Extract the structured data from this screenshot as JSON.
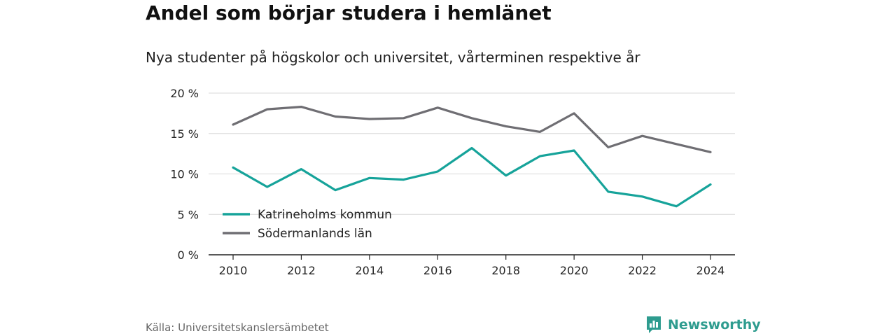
{
  "header": {
    "title": "Andel som börjar studera i hemlänet",
    "subtitle": "Nya studenter på högskolor och universitet, vårterminen respektive år"
  },
  "footer": {
    "source": "Källa: Universitetskanslersämbetet",
    "brand": "Newsworthy",
    "brand_icon": "bar-chart-speech-icon",
    "brand_color": "#2e9c8f"
  },
  "chart_data": {
    "type": "line",
    "x": [
      2010,
      2011,
      2012,
      2013,
      2014,
      2015,
      2016,
      2017,
      2018,
      2019,
      2020,
      2021,
      2022,
      2023,
      2024
    ],
    "x_ticks": [
      "2010",
      "2012",
      "2014",
      "2016",
      "2018",
      "2020",
      "2022",
      "2024"
    ],
    "y_ticks": [
      "0 %",
      "5 %",
      "10 %",
      "15 %",
      "20 %"
    ],
    "ylim": [
      0,
      20
    ],
    "grid": true,
    "legend_position": "bottom-left",
    "series": [
      {
        "name": "Katrineholms kommun",
        "color": "#16a39a",
        "values": [
          10.8,
          8.4,
          10.6,
          8.0,
          9.5,
          9.3,
          10.3,
          13.2,
          9.8,
          12.2,
          12.9,
          7.8,
          7.2,
          6.0,
          8.7
        ]
      },
      {
        "name": "Södermanlands län",
        "color": "#6f6e73",
        "values": [
          16.1,
          18.0,
          18.3,
          17.1,
          16.8,
          16.9,
          18.2,
          16.9,
          15.9,
          15.2,
          17.5,
          13.3,
          14.7,
          13.7,
          12.7
        ]
      }
    ]
  }
}
